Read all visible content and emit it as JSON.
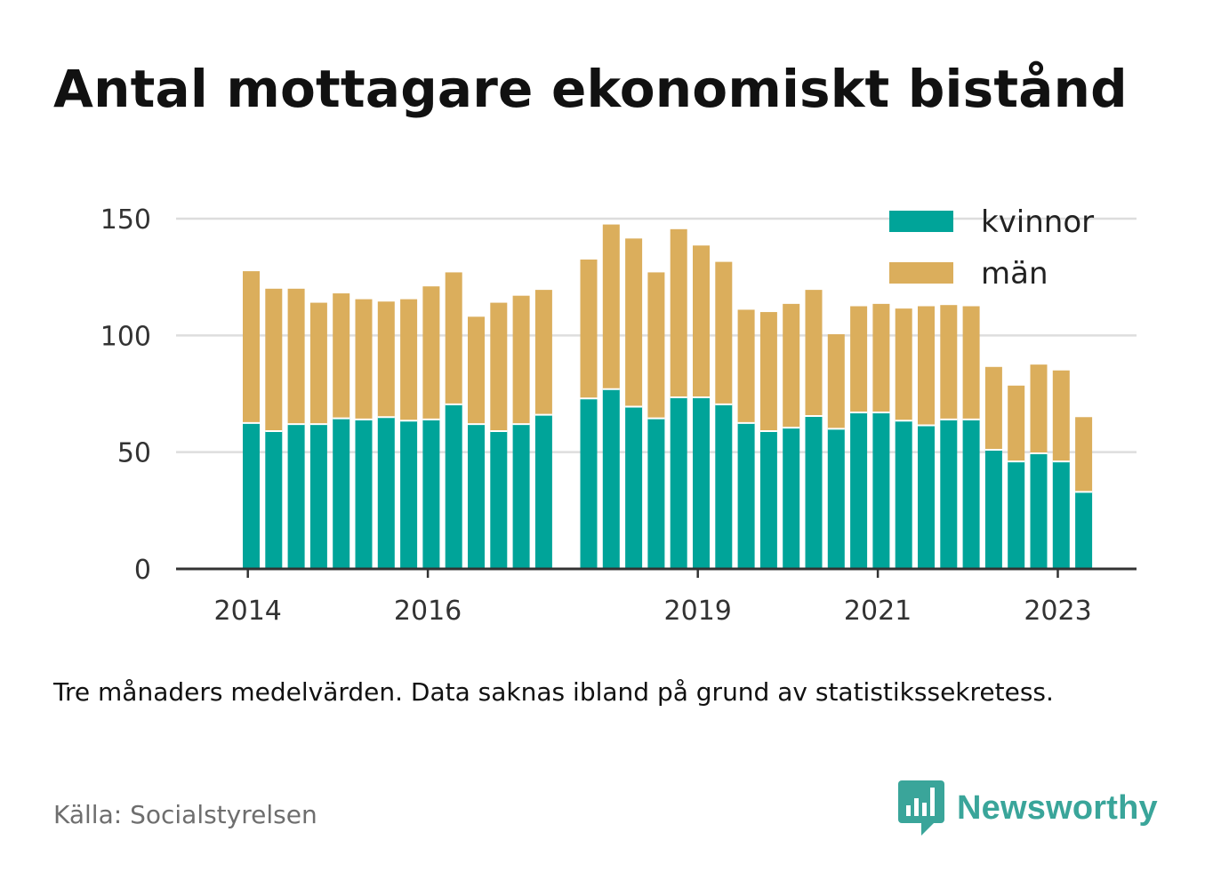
{
  "title": "Antal mottagare ekonomiskt bistånd",
  "note": "Tre månaders medelvärden. Data saknas ibland på grund av statistikssekretess.",
  "source": "Källa: Socialstyrelsen",
  "brand": {
    "name": "Newsworthy",
    "icon": "bar-chart-speech-bubble-icon",
    "color": "#3aa59a"
  },
  "colors": {
    "kvinnor": "#00a499",
    "man": "#dbae5c",
    "grid": "#dddddd",
    "axis": "#333333"
  },
  "chart_data": {
    "type": "bar",
    "stacked": true,
    "ylim": [
      0,
      150
    ],
    "yticks": [
      0,
      50,
      100,
      150
    ],
    "xticks": [
      {
        "label": "2014",
        "index": -0.15
      },
      {
        "label": "2016",
        "index": 7.85
      },
      {
        "label": "2019",
        "index": 19.85
      },
      {
        "label": "2021",
        "index": 27.85
      },
      {
        "label": "2023",
        "index": 35.85
      }
    ],
    "grid": true,
    "legend_position": "top-right",
    "series": [
      {
        "name": "kvinnor",
        "values": [
          62.5,
          59,
          62,
          62,
          64.5,
          64,
          65,
          63.5,
          64,
          70.5,
          62,
          59,
          62,
          66,
          null,
          73,
          77,
          69.5,
          64.5,
          73.5,
          73.5,
          70.5,
          62.5,
          59,
          60.5,
          65.5,
          60,
          67,
          67,
          63.5,
          61.5,
          64,
          64,
          51,
          46,
          49.5,
          46,
          33
        ]
      },
      {
        "name": "män",
        "values": [
          65,
          61,
          58,
          52,
          53.5,
          51.5,
          49.5,
          52,
          57,
          56.5,
          46,
          55,
          55,
          53.5,
          null,
          59.5,
          70.5,
          72,
          62.5,
          72,
          65,
          61,
          48.5,
          51,
          53,
          54,
          40.5,
          45.5,
          46.5,
          48,
          51,
          49,
          48.5,
          35.5,
          32.5,
          38,
          39,
          32
        ]
      }
    ]
  }
}
